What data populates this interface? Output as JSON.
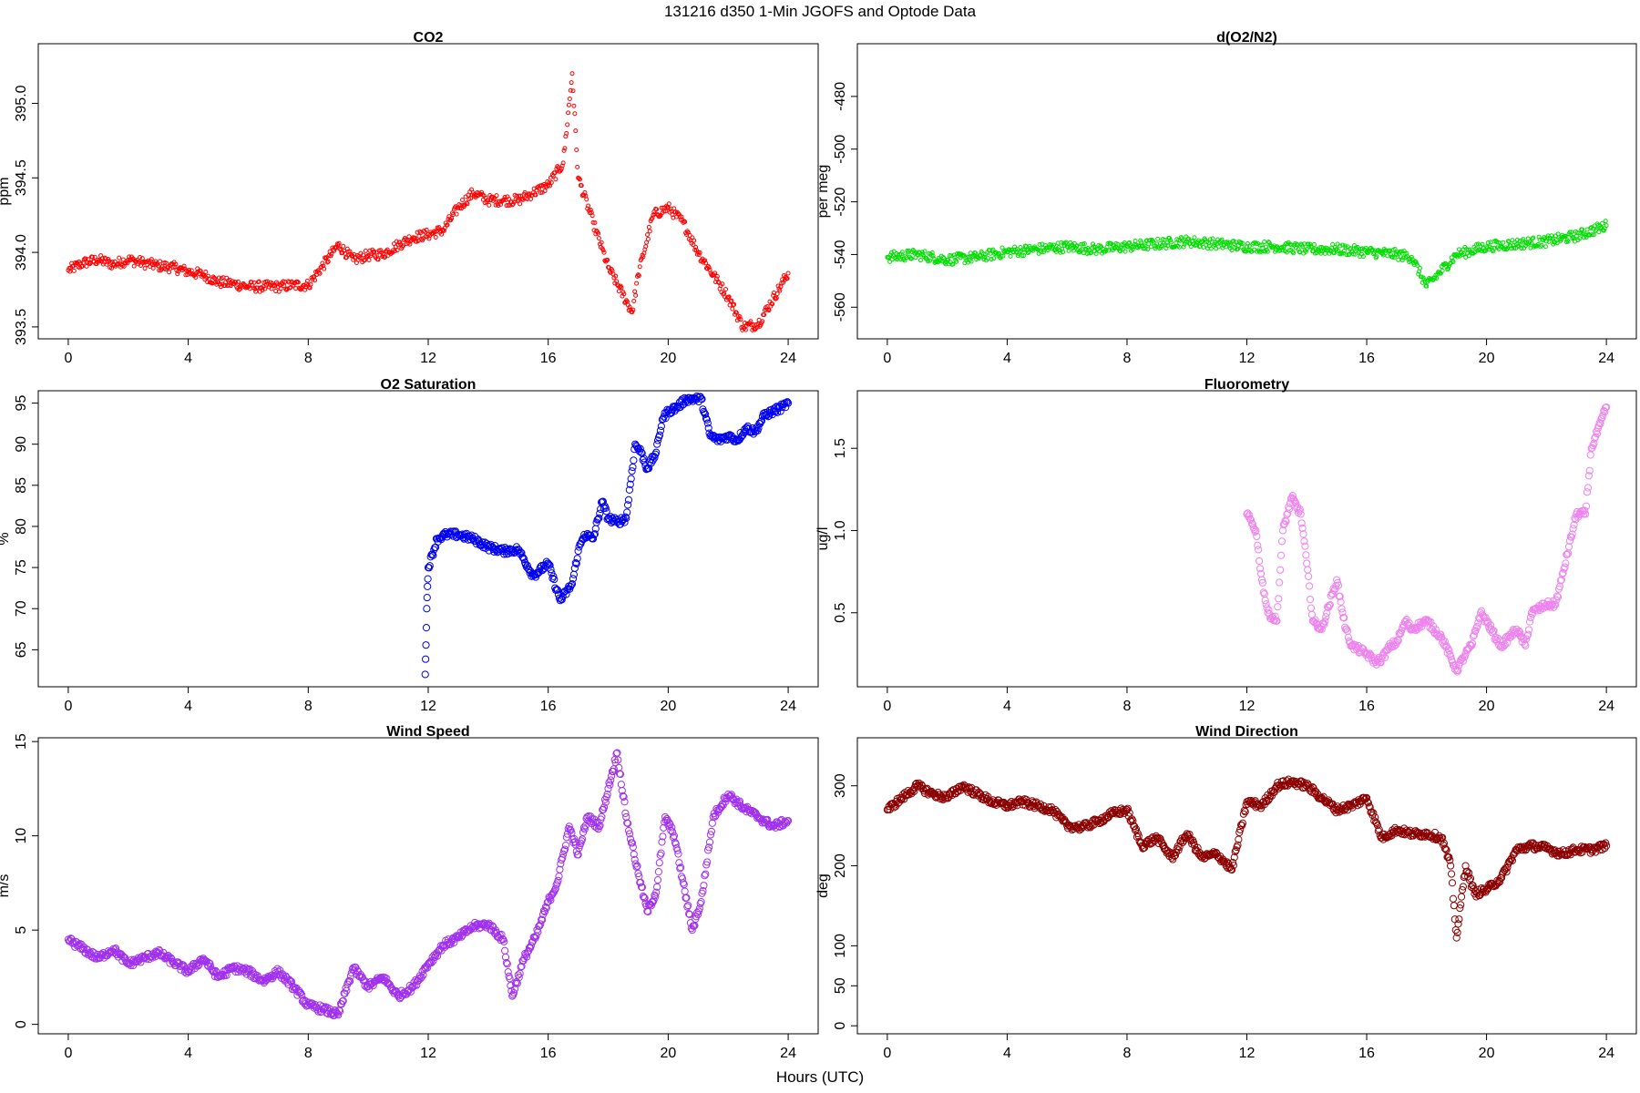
{
  "figure": {
    "title": "131216   d350   1-Min  JGOFS and Optode Data",
    "xlabel": "Hours (UTC)"
  },
  "chart_data": [
    {
      "id": "co2",
      "type": "scatter",
      "title": "CO2",
      "ylabel": "ppm",
      "color": "#ff0000",
      "marker": "small-circle",
      "xlim": [
        -1,
        25
      ],
      "ylim": [
        393.42,
        395.4
      ],
      "xticks": [
        0,
        4,
        8,
        12,
        16,
        20,
        24
      ],
      "yticks": [
        393.5,
        394.0,
        394.5,
        395.0
      ],
      "ytick_labels": [
        "393.5",
        "394.0",
        "394.5",
        "395.0"
      ],
      "series": [
        {
          "x": [
            0,
            0.5,
            1,
            1.5,
            2,
            2.5,
            3,
            3.5,
            4,
            4.5,
            5,
            5.5,
            6,
            6.5,
            7,
            7.5,
            8,
            9,
            9.5,
            10,
            10.5,
            11,
            11.5,
            12,
            12.5,
            13,
            13.5,
            14,
            14.5,
            15,
            15.5,
            16,
            16.5,
            16.8,
            17,
            17.5,
            18,
            18.8,
            19,
            19.5,
            20,
            20.5,
            21,
            21.5,
            22,
            22.5,
            23,
            24
          ],
          "y": [
            393.88,
            393.93,
            393.95,
            393.92,
            393.95,
            393.93,
            393.91,
            393.9,
            393.87,
            393.85,
            393.8,
            393.79,
            393.77,
            393.77,
            393.77,
            393.78,
            393.78,
            394.05,
            393.95,
            393.98,
            393.99,
            394.05,
            394.1,
            394.12,
            394.15,
            394.3,
            394.4,
            394.35,
            394.35,
            394.35,
            394.4,
            394.45,
            394.6,
            395.2,
            394.5,
            394.2,
            393.9,
            393.6,
            393.85,
            394.25,
            394.3,
            394.2,
            394.0,
            393.85,
            393.7,
            393.5,
            393.52,
            393.86
          ]
        }
      ]
    },
    {
      "id": "do2n2",
      "type": "scatter",
      "title": "d(O2/N2)",
      "ylabel": "per meg",
      "color": "#00dd00",
      "marker": "small-circle",
      "xlim": [
        -1,
        25
      ],
      "ylim": [
        -572,
        -460
      ],
      "xticks": [
        0,
        4,
        8,
        12,
        16,
        20,
        24
      ],
      "yticks": [
        -560,
        -540,
        -520,
        -500,
        -480
      ],
      "ytick_labels": [
        "-560",
        "-540",
        "-520",
        "-500",
        "-480"
      ],
      "series": [
        {
          "x": [
            0,
            1,
            2,
            3,
            4,
            5,
            6,
            7,
            8,
            9,
            10,
            11,
            12,
            13,
            14,
            15,
            16,
            17,
            17.5,
            18,
            19,
            20,
            21,
            22,
            23,
            24
          ],
          "y": [
            -541,
            -540,
            -542,
            -541,
            -539,
            -538,
            -537,
            -538,
            -537,
            -536,
            -535,
            -536,
            -537,
            -537,
            -538,
            -538,
            -539,
            -540,
            -541,
            -552,
            -540,
            -537,
            -536,
            -535,
            -533,
            -529
          ]
        }
      ]
    },
    {
      "id": "o2sat",
      "type": "scatter",
      "title": "O2 Saturation",
      "ylabel": "%",
      "color": "#0000ee",
      "marker": "circle",
      "xlim": [
        -1,
        25
      ],
      "ylim": [
        60.5,
        96.5
      ],
      "xticks": [
        0,
        4,
        8,
        12,
        16,
        20,
        24
      ],
      "yticks": [
        65,
        70,
        75,
        80,
        85,
        90,
        95
      ],
      "ytick_labels": [
        "65",
        "70",
        "75",
        "80",
        "85",
        "90",
        "95"
      ],
      "series": [
        {
          "x": [
            11.9,
            11.95,
            12,
            12.3,
            12.6,
            13,
            13.5,
            14,
            14.5,
            15,
            15.5,
            16,
            16.4,
            16.8,
            17,
            17.2,
            17.5,
            17.8,
            18,
            18.3,
            18.6,
            18.9,
            19.1,
            19.3,
            19.6,
            19.8,
            20,
            20.3,
            20.6,
            20.9,
            21.1,
            21.4,
            21.7,
            22,
            22.3,
            22.6,
            22.9,
            23.2,
            23.5,
            23.8,
            24
          ],
          "y": [
            62,
            70,
            75,
            78.5,
            79,
            79,
            78.5,
            77.5,
            77,
            77.2,
            74,
            75.5,
            71,
            73,
            77,
            79,
            78.5,
            83,
            81,
            80.5,
            81,
            90,
            89,
            87,
            89,
            93,
            94,
            94.5,
            95.5,
            95.5,
            95.5,
            91,
            90.5,
            91,
            90.5,
            92,
            91.5,
            93.5,
            94,
            94.5,
            95
          ]
        }
      ]
    },
    {
      "id": "fluor",
      "type": "scatter",
      "title": "Fluorometry",
      "ylabel": "ug/l",
      "color": "#ee82ee",
      "marker": "circle",
      "xlim": [
        -1,
        25
      ],
      "ylim": [
        0.05,
        1.85
      ],
      "xticks": [
        0,
        4,
        8,
        12,
        16,
        20,
        24
      ],
      "yticks": [
        0.5,
        1.0,
        1.5
      ],
      "ytick_labels": [
        "0.5",
        "1.0",
        "1.5"
      ],
      "series": [
        {
          "x": [
            12,
            12.3,
            12.5,
            12.7,
            13,
            13.2,
            13.5,
            13.8,
            14,
            14.2,
            14.5,
            15,
            15.3,
            15.5,
            16,
            16.3,
            16.5,
            16.8,
            17,
            17.3,
            17.5,
            18,
            18.5,
            19,
            19.3,
            19.5,
            19.8,
            20,
            20.3,
            20.5,
            21,
            21.3,
            21.5,
            22,
            22.3,
            22.5,
            23,
            23.3,
            23.5,
            23.8,
            24
          ],
          "y": [
            1.1,
            1.0,
            0.7,
            0.5,
            0.45,
            1.0,
            1.2,
            1.1,
            0.8,
            0.45,
            0.4,
            0.7,
            0.4,
            0.3,
            0.25,
            0.2,
            0.22,
            0.3,
            0.32,
            0.45,
            0.4,
            0.45,
            0.35,
            0.15,
            0.25,
            0.3,
            0.5,
            0.45,
            0.35,
            0.3,
            0.4,
            0.3,
            0.5,
            0.55,
            0.55,
            0.7,
            1.1,
            1.1,
            1.5,
            1.65,
            1.75
          ]
        }
      ]
    },
    {
      "id": "windspeed",
      "type": "scatter",
      "title": "Wind Speed",
      "ylabel": "m/s",
      "color": "#a030ee",
      "marker": "circle",
      "xlim": [
        -1,
        25
      ],
      "ylim": [
        -0.5,
        15.2
      ],
      "xticks": [
        0,
        4,
        8,
        12,
        16,
        20,
        24
      ],
      "yticks": [
        0,
        5,
        10,
        15
      ],
      "ytick_labels": [
        "0",
        "5",
        "10",
        "15"
      ],
      "series": [
        {
          "x": [
            0,
            0.5,
            1,
            1.5,
            2,
            2.5,
            3,
            3.5,
            4,
            4.5,
            5,
            5.5,
            6,
            6.5,
            7,
            7.5,
            8,
            8.5,
            9,
            9.5,
            10,
            10.5,
            11,
            11.5,
            12,
            12.5,
            13,
            13.5,
            14,
            14.5,
            14.8,
            15.2,
            15.6,
            16,
            16.3,
            16.7,
            17,
            17.3,
            17.7,
            18,
            18.3,
            18.6,
            19,
            19.3,
            19.6,
            19.9,
            20.2,
            20.5,
            20.8,
            21.1,
            21.5,
            22,
            22.5,
            23,
            23.5,
            24
          ],
          "y": [
            4.5,
            4,
            3.5,
            4,
            3.2,
            3.5,
            3.8,
            3.3,
            2.8,
            3.5,
            2.5,
            3,
            2.8,
            2.3,
            2.8,
            2,
            1,
            0.8,
            0.5,
            3,
            2,
            2.5,
            1.5,
            2,
            3.2,
            4.2,
            4.6,
            5.2,
            5.3,
            4.5,
            1.5,
            3.5,
            4.7,
            6.5,
            7.5,
            10.5,
            9,
            11,
            10.5,
            12.5,
            14.4,
            11,
            8,
            6,
            7,
            11,
            10,
            7.5,
            5,
            6.5,
            11,
            12.2,
            11.5,
            11,
            10.5,
            10.8
          ]
        }
      ]
    },
    {
      "id": "winddir",
      "type": "scatter",
      "title": "Wind Direction",
      "ylabel": "deg",
      "color": "#8b0000",
      "marker": "circle",
      "xlim": [
        -1,
        25
      ],
      "ylim": [
        -10,
        360
      ],
      "xticks": [
        0,
        4,
        8,
        12,
        16,
        20,
        24
      ],
      "yticks": [
        0,
        50,
        100,
        200,
        300
      ],
      "ytick_labels": [
        "0",
        "50",
        "100",
        "200",
        "300"
      ],
      "series": [
        {
          "x": [
            0,
            0.5,
            1,
            1.5,
            2,
            2.5,
            3,
            3.5,
            4,
            4.5,
            5,
            5.5,
            6,
            6.5,
            7,
            7.5,
            8,
            8.5,
            9,
            9.5,
            10,
            10.5,
            11,
            11.5,
            12,
            12.5,
            13,
            13.5,
            14,
            14.5,
            15,
            15.5,
            16,
            16.5,
            17,
            17.5,
            18,
            18.5,
            18.8,
            19,
            19.3,
            19.6,
            20,
            20.5,
            21,
            21.5,
            22,
            22.5,
            23,
            23.5,
            24
          ],
          "y": [
            270,
            285,
            300,
            290,
            285,
            300,
            290,
            280,
            275,
            280,
            275,
            270,
            250,
            248,
            255,
            265,
            270,
            225,
            235,
            210,
            240,
            210,
            215,
            195,
            280,
            275,
            300,
            305,
            300,
            285,
            270,
            275,
            285,
            235,
            245,
            240,
            240,
            235,
            200,
            110,
            200,
            165,
            170,
            185,
            220,
            225,
            222,
            215,
            220,
            220,
            225
          ]
        }
      ]
    }
  ]
}
